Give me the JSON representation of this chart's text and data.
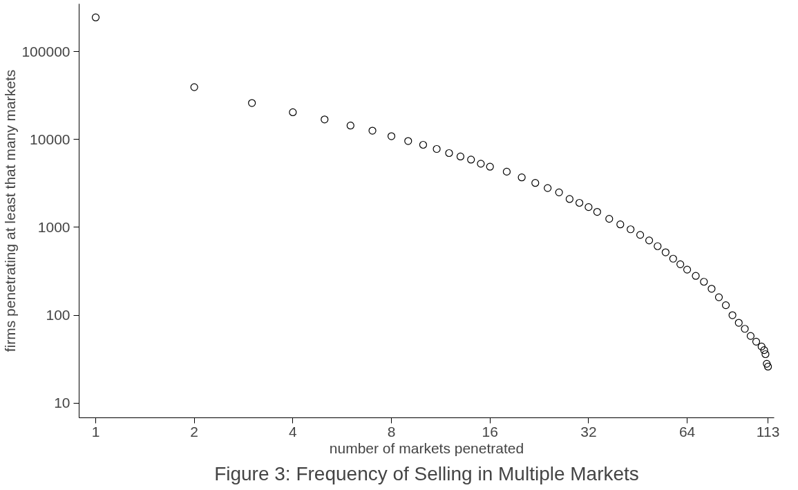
{
  "chart_data": {
    "type": "scatter",
    "title": "Figure 3: Frequency of Selling in Multiple Markets",
    "xlabel": "number of markets penetrated",
    "ylabel": "firms penetrating at least that many markets",
    "log": "xy",
    "grid": false,
    "marker": "circle",
    "xlim": [
      0.89,
      118
    ],
    "ylim": [
      6.8,
      350000
    ],
    "xticks": [
      1,
      2,
      4,
      8,
      16,
      32,
      64,
      113
    ],
    "yticks": [
      10,
      100,
      1000,
      10000,
      100000
    ],
    "series": [
      {
        "color": "#000000",
        "x": [
          1,
          2,
          3,
          4,
          5,
          6,
          7,
          8,
          9,
          10,
          11,
          12,
          13,
          14,
          15,
          16,
          18,
          20,
          22,
          24,
          26,
          28,
          30,
          32,
          34,
          37,
          40,
          43,
          46,
          49,
          52,
          55,
          58,
          61,
          64,
          68,
          72,
          76,
          80,
          84,
          88,
          92,
          96,
          100,
          104,
          108,
          110,
          111,
          112,
          113
        ],
        "values": [
          245000,
          39400,
          26000,
          20400,
          16900,
          14400,
          12600,
          10900,
          9600,
          8700,
          7800,
          7000,
          6400,
          5900,
          5300,
          4900,
          4300,
          3700,
          3200,
          2800,
          2500,
          2100,
          1900,
          1700,
          1500,
          1250,
          1080,
          950,
          820,
          710,
          610,
          520,
          440,
          380,
          330,
          280,
          240,
          200,
          160,
          130,
          100,
          82,
          70,
          58,
          50,
          44,
          40,
          36,
          28,
          26
        ]
      }
    ]
  }
}
